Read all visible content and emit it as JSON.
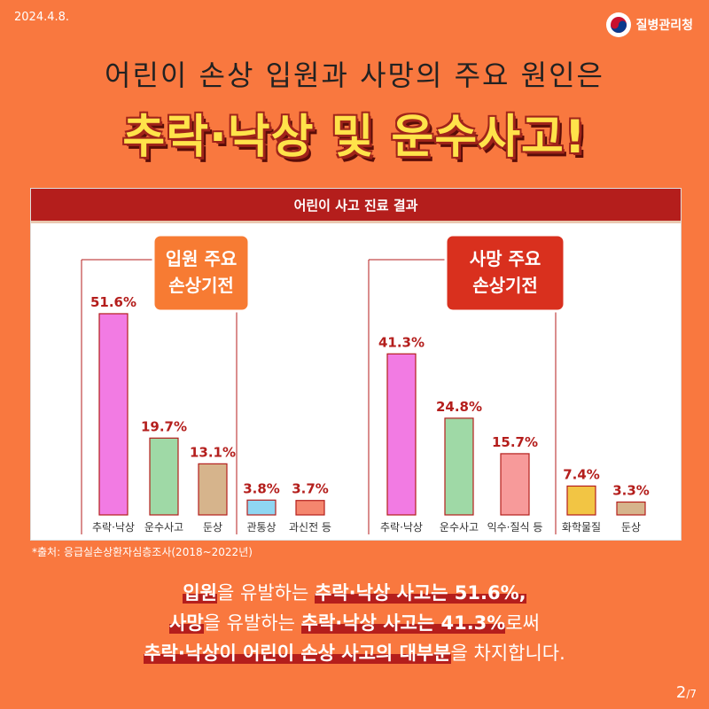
{
  "date": "2024.4.8.",
  "org_name": "질병관리청",
  "headline": "어린이 손상 입원과 사망의 주요 원인은",
  "big_title": "추락·낙상 및 운수사고!",
  "panel_title": "어린이 사고 진료 결과",
  "chart_data": [
    {
      "type": "bar",
      "title": "입원 주요 손상기전",
      "categories": [
        "추락·낙상",
        "운수사고",
        "둔상",
        "관통상",
        "과신전 등"
      ],
      "values": [
        51.6,
        19.7,
        13.1,
        3.8,
        3.7
      ],
      "value_labels": [
        "51.6%",
        "19.7%",
        "13.1%",
        "3.8%",
        "3.7%"
      ],
      "colors": [
        "#f27be3",
        "#9fd9a6",
        "#d6b48c",
        "#8fd6f2",
        "#f5866e"
      ]
    },
    {
      "type": "bar",
      "title": "사망 주요 손상기전",
      "categories": [
        "추락·낙상",
        "운수사고",
        "익수·질식 등",
        "화학물질",
        "둔상"
      ],
      "values": [
        41.3,
        24.8,
        15.7,
        7.4,
        3.3
      ],
      "value_labels": [
        "41.3%",
        "24.8%",
        "15.7%",
        "7.4%",
        "3.3%"
      ],
      "colors": [
        "#f27be3",
        "#9fd9a6",
        "#f79a9a",
        "#f2c544",
        "#d6b48c"
      ]
    }
  ],
  "source": "*출처: 응급실손상환자심층조사(2018~2022년)",
  "summary": {
    "l1_hl1": "입원",
    "l1_t1": "을 유발하는 ",
    "l1_hl2": "추락·낙상 사고는 51.6%,",
    "l2_hl1": "사망",
    "l2_t1": "을 유발하는 ",
    "l2_hl2": "추락·낙상 사고는 41.3%",
    "l2_t2": "로써",
    "l3_hl1": "추락·낙상이 어린이 손상 사고의 대부분",
    "l3_t1": "을 차지합니다."
  },
  "page_current": "2",
  "page_total": "/7"
}
